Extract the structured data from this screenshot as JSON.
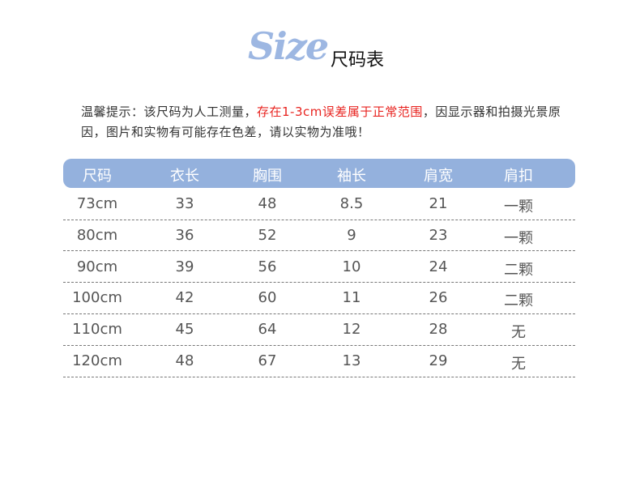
{
  "header": {
    "logo_text": "Size",
    "title": "尺码表"
  },
  "notice": {
    "part1": "温馨提示：该尺码为人工测量，",
    "highlight": "存在1-3cm误差属于正常范围",
    "part2": "，因显示器和拍摄光景原因，图片和实物有可能存在色差，请以实物为准哦！",
    "highlight_color": "#e8231f"
  },
  "table": {
    "header_color": "#94b1dd",
    "columns": [
      "尺码",
      "衣长",
      "胸围",
      "袖长",
      "肩宽",
      "肩扣"
    ],
    "rows": [
      [
        "73cm",
        "33",
        "48",
        "8.5",
        "21",
        "一颗"
      ],
      [
        "80cm",
        "36",
        "52",
        "9",
        "23",
        "一颗"
      ],
      [
        "90cm",
        "39",
        "56",
        "10",
        "24",
        "二颗"
      ],
      [
        "100cm",
        "42",
        "60",
        "11",
        "26",
        "二颗"
      ],
      [
        "110cm",
        "45",
        "64",
        "12",
        "28",
        "无"
      ],
      [
        "120cm",
        "48",
        "67",
        "13",
        "29",
        "无"
      ]
    ]
  }
}
